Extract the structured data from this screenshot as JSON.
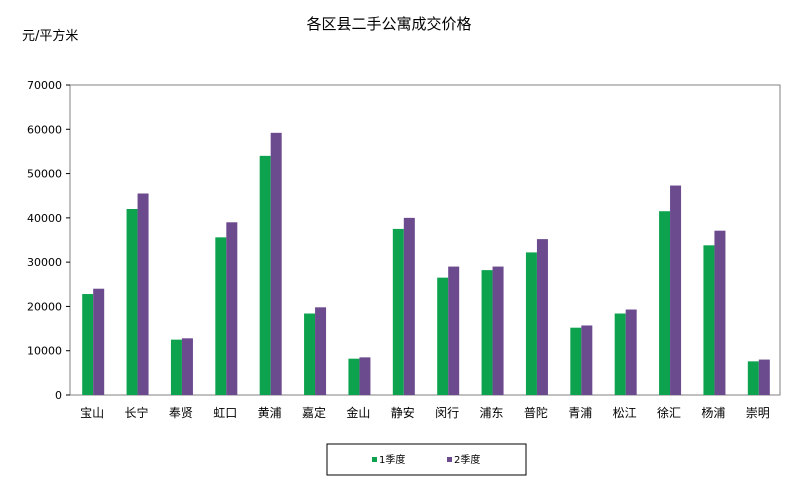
{
  "chart_data": {
    "type": "bar",
    "title": "各区县二手公寓成交价格",
    "ylabel": "元/平方米",
    "xlabel": "",
    "ylim": [
      0,
      70000
    ],
    "yticks": [
      "0",
      "10000",
      "20000",
      "30000",
      "40000",
      "50000",
      "60000",
      "70000"
    ],
    "categories": [
      "宝山",
      "长宁",
      "奉贤",
      "虹口",
      "黄浦",
      "嘉定",
      "金山",
      "静安",
      "闵行",
      "浦东",
      "普陀",
      "青浦",
      "松江",
      "徐汇",
      "杨浦",
      "崇明"
    ],
    "series": [
      {
        "name": "1季度",
        "color": "#0da34e",
        "values": [
          22800,
          42000,
          12500,
          35600,
          54000,
          18400,
          8200,
          37500,
          26500,
          28200,
          32200,
          15200,
          18400,
          41500,
          33800,
          7600
        ]
      },
      {
        "name": "2季度",
        "color": "#6b4a8e",
        "values": [
          24000,
          45500,
          12800,
          39000,
          59200,
          19800,
          8500,
          40000,
          29000,
          29000,
          35200,
          15700,
          19300,
          47300,
          37100,
          8000
        ]
      }
    ],
    "grid": false,
    "legend_position": "bottom-center"
  }
}
